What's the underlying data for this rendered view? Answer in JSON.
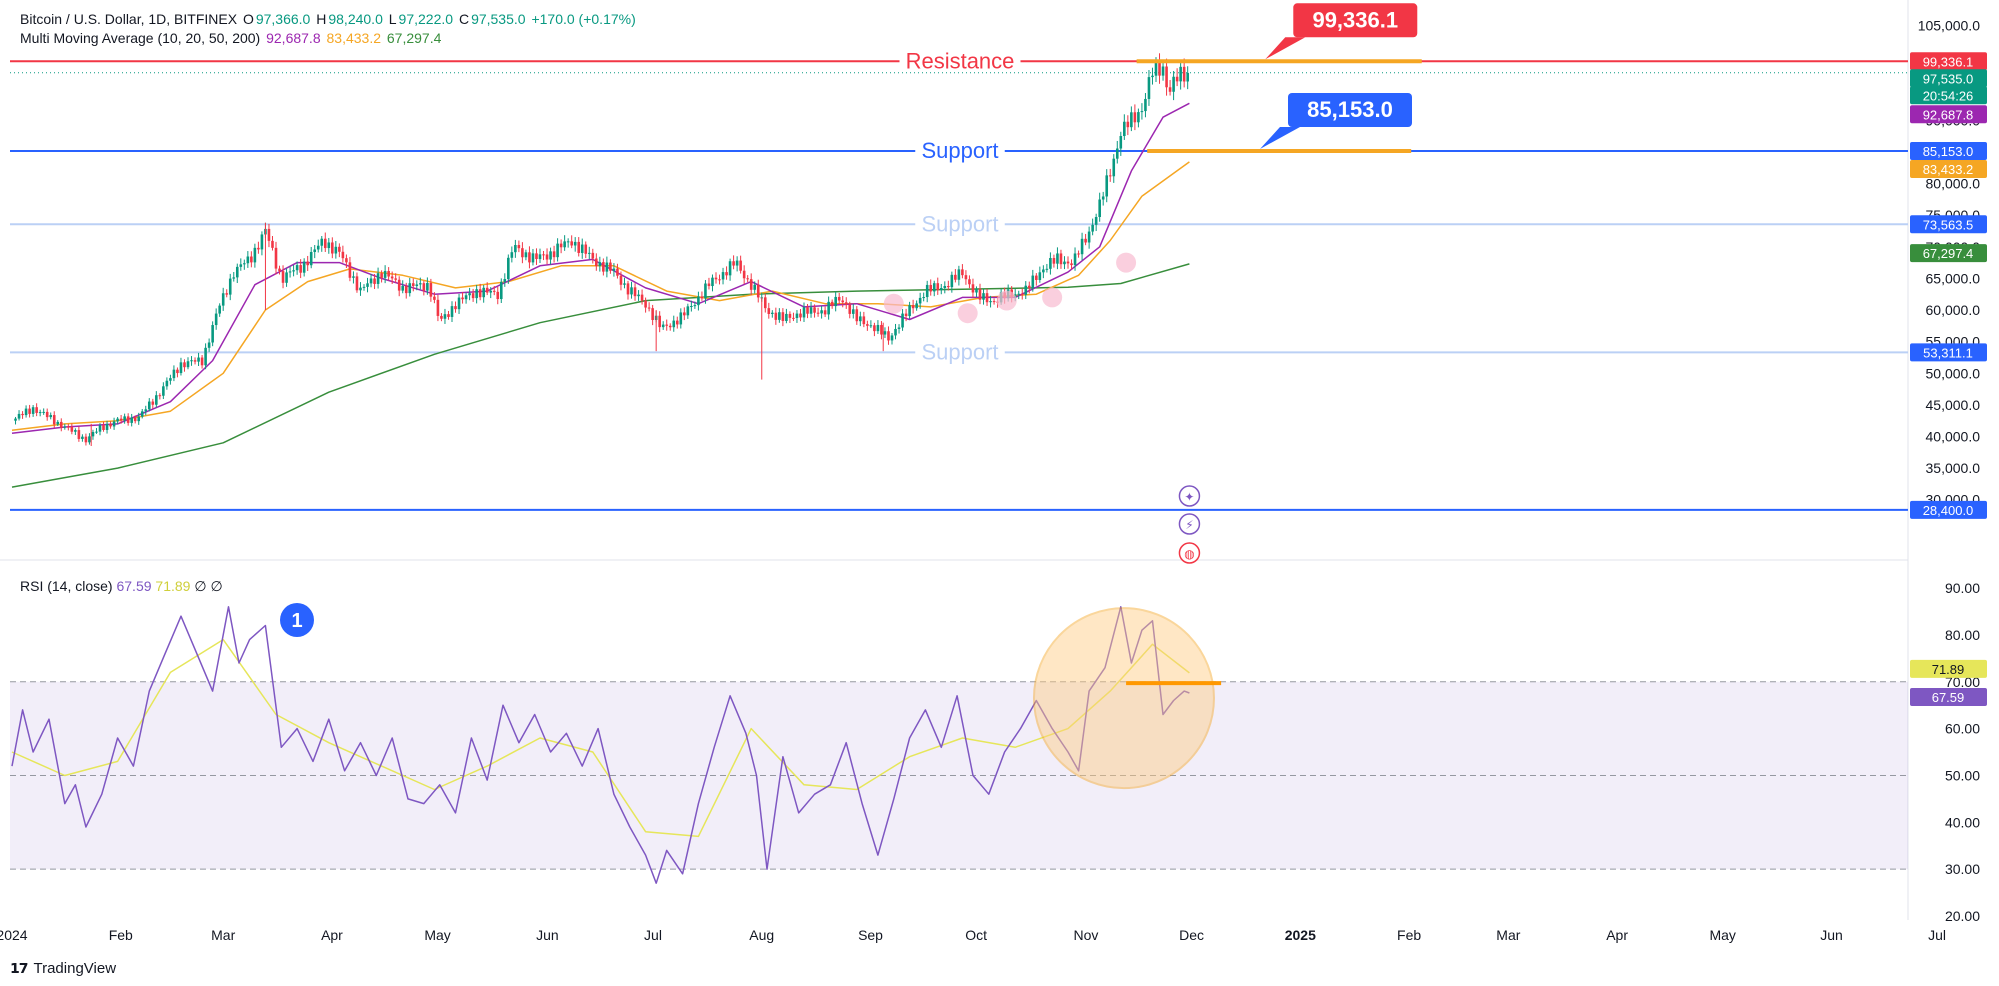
{
  "header": {
    "symbol": "Bitcoin / U.S. Dollar, 1D, BITFINEX",
    "open_label": "O",
    "open": "97,366.0",
    "high_label": "H",
    "high": "98,240.0",
    "low_label": "L",
    "low": "97,222.0",
    "close_label": "C",
    "close": "97,535.0",
    "change": "+170.0 (+0.17%)",
    "ma_title": "Multi Moving Average (10, 20, 50, 200)",
    "ma_vals": [
      "92,687.8",
      "83,433.2",
      "67,297.4"
    ]
  },
  "rsi_legend": {
    "title": "RSI (14, close)",
    "v1": "67.59",
    "v2": "71.89",
    "n1": "∅",
    "n2": "∅"
  },
  "brand": "TradingView",
  "colors": {
    "up": "#089981",
    "down": "#f23645",
    "ma10": "#9c27b0",
    "ma20": "#f5a623",
    "ma200": "#388e3c",
    "resistance": "#f23645",
    "support": "#2962ff",
    "support_faint": "#bbd0f5",
    "orange": "#f5a623",
    "rsi": "#7e57c2",
    "rsi_ma": "#e6e65a",
    "marker": "#ff9800",
    "badge_blue": "#2962ff"
  },
  "chart_data": {
    "type": "candlestick",
    "title": "Bitcoin / U.S. Dollar, 1D, BITFINEX",
    "ylim": [
      23000,
      106500
    ],
    "y_ticks": [
      "105,000.0",
      "95,000.0",
      "90,000.0",
      "80,000.0",
      "75,000.0",
      "70,000.0",
      "65,000.0",
      "60,000.0",
      "55,000.0",
      "50,000.0",
      "45,000.0",
      "40,000.0",
      "35,000.0",
      "30,000.0"
    ],
    "y_tick_values": [
      105000,
      95000,
      90000,
      80000,
      75000,
      70000,
      65000,
      60000,
      55000,
      50000,
      45000,
      40000,
      35000,
      30000
    ],
    "x_ticks": [
      {
        "label": "2024",
        "t": 0
      },
      {
        "label": "Feb",
        "t": 1.03
      },
      {
        "label": "Mar",
        "t": 2.0
      },
      {
        "label": "Apr",
        "t": 3.03
      },
      {
        "label": "May",
        "t": 4.03
      },
      {
        "label": "Jun",
        "t": 5.07
      },
      {
        "label": "Jul",
        "t": 6.07
      },
      {
        "label": "Aug",
        "t": 7.1
      },
      {
        "label": "Sep",
        "t": 8.13
      },
      {
        "label": "Oct",
        "t": 9.13
      },
      {
        "label": "Nov",
        "t": 10.17
      },
      {
        "label": "Dec",
        "t": 11.17
      },
      {
        "label": "2025",
        "t": 12.2
      },
      {
        "label": "Feb",
        "t": 13.23
      },
      {
        "label": "Mar",
        "t": 14.17
      },
      {
        "label": "Apr",
        "t": 15.2
      },
      {
        "label": "May",
        "t": 16.2
      },
      {
        "label": "Jun",
        "t": 17.23
      },
      {
        "label": "Jul",
        "t": 18.23
      }
    ],
    "price_path": [
      [
        0,
        42500
      ],
      [
        0.2,
        44500
      ],
      [
        0.35,
        43000
      ],
      [
        0.5,
        41500
      ],
      [
        0.7,
        39500
      ],
      [
        0.85,
        41500
      ],
      [
        1.0,
        42500
      ],
      [
        1.2,
        43000
      ],
      [
        1.4,
        47000
      ],
      [
        1.6,
        51500
      ],
      [
        1.8,
        52000
      ],
      [
        1.95,
        60000
      ],
      [
        2.1,
        66000
      ],
      [
        2.25,
        68000
      ],
      [
        2.4,
        72500
      ],
      [
        2.55,
        65000
      ],
      [
        2.75,
        67000
      ],
      [
        2.95,
        71000
      ],
      [
        3.1,
        69000
      ],
      [
        3.3,
        63000
      ],
      [
        3.5,
        66000
      ],
      [
        3.7,
        63500
      ],
      [
        3.95,
        64000
      ],
      [
        4.05,
        58000
      ],
      [
        4.2,
        61000
      ],
      [
        4.4,
        63000
      ],
      [
        4.6,
        62500
      ],
      [
        4.75,
        70000
      ],
      [
        4.95,
        68000
      ],
      [
        5.1,
        69000
      ],
      [
        5.3,
        71000
      ],
      [
        5.5,
        68000
      ],
      [
        5.7,
        66000
      ],
      [
        5.85,
        63000
      ],
      [
        6.0,
        61000
      ],
      [
        6.15,
        57000
      ],
      [
        6.35,
        59000
      ],
      [
        6.6,
        64000
      ],
      [
        6.85,
        67500
      ],
      [
        7.0,
        64000
      ],
      [
        7.15,
        60000
      ],
      [
        7.3,
        58500
      ],
      [
        7.45,
        59500
      ],
      [
        7.7,
        60000
      ],
      [
        7.85,
        62000
      ],
      [
        8.0,
        58500
      ],
      [
        8.15,
        57500
      ],
      [
        8.3,
        55500
      ],
      [
        8.45,
        59000
      ],
      [
        8.65,
        63000
      ],
      [
        8.85,
        64000
      ],
      [
        9.0,
        66000
      ],
      [
        9.15,
        62000
      ],
      [
        9.3,
        61500
      ],
      [
        9.45,
        62500
      ],
      [
        9.6,
        63000
      ],
      [
        9.75,
        66500
      ],
      [
        9.9,
        68000
      ],
      [
        10.05,
        67500
      ],
      [
        10.2,
        72500
      ],
      [
        10.3,
        76500
      ],
      [
        10.4,
        82000
      ],
      [
        10.5,
        88000
      ],
      [
        10.6,
        90000
      ],
      [
        10.7,
        92000
      ],
      [
        10.8,
        97500
      ],
      [
        10.9,
        98500
      ],
      [
        10.95,
        94500
      ],
      [
        11.05,
        97000
      ],
      [
        11.15,
        97535
      ]
    ],
    "wicks": [
      [
        7.1,
        49000,
        62000
      ],
      [
        6.1,
        53500,
        60000
      ],
      [
        8.25,
        53500,
        58000
      ],
      [
        2.4,
        60000,
        73800
      ],
      [
        0.75,
        38500,
        42000
      ]
    ],
    "ma10": [
      [
        0,
        40500
      ],
      [
        0.5,
        41500
      ],
      [
        1.0,
        42000
      ],
      [
        1.5,
        45500
      ],
      [
        1.9,
        52000
      ],
      [
        2.3,
        64000
      ],
      [
        2.7,
        67500
      ],
      [
        3.1,
        67500
      ],
      [
        3.5,
        65000
      ],
      [
        4.0,
        62500
      ],
      [
        4.5,
        63000
      ],
      [
        5.0,
        67000
      ],
      [
        5.5,
        68000
      ],
      [
        6.0,
        63500
      ],
      [
        6.5,
        61000
      ],
      [
        7.0,
        64500
      ],
      [
        7.5,
        60500
      ],
      [
        8.0,
        61000
      ],
      [
        8.5,
        58500
      ],
      [
        9.0,
        62000
      ],
      [
        9.5,
        62000
      ],
      [
        10.0,
        66000
      ],
      [
        10.3,
        70000
      ],
      [
        10.6,
        82000
      ],
      [
        10.9,
        90500
      ],
      [
        11.15,
        92688
      ]
    ],
    "ma20": [
      [
        0,
        41000
      ],
      [
        0.5,
        42000
      ],
      [
        1.0,
        42500
      ],
      [
        1.5,
        44000
      ],
      [
        2.0,
        50000
      ],
      [
        2.4,
        60000
      ],
      [
        2.8,
        64500
      ],
      [
        3.2,
        66500
      ],
      [
        3.7,
        65500
      ],
      [
        4.2,
        63500
      ],
      [
        4.7,
        64500
      ],
      [
        5.2,
        67000
      ],
      [
        5.7,
        67000
      ],
      [
        6.2,
        63000
      ],
      [
        6.7,
        61500
      ],
      [
        7.2,
        63000
      ],
      [
        7.7,
        61000
      ],
      [
        8.2,
        61000
      ],
      [
        8.7,
        60500
      ],
      [
        9.2,
        62000
      ],
      [
        9.7,
        62500
      ],
      [
        10.1,
        65500
      ],
      [
        10.4,
        71000
      ],
      [
        10.7,
        78000
      ],
      [
        11.15,
        83433
      ]
    ],
    "ma200": [
      [
        0,
        32000
      ],
      [
        1.0,
        35000
      ],
      [
        2.0,
        39000
      ],
      [
        3.0,
        47000
      ],
      [
        4.0,
        53000
      ],
      [
        5.0,
        58000
      ],
      [
        6.0,
        61500
      ],
      [
        7.0,
        62500
      ],
      [
        8.0,
        63000
      ],
      [
        9.0,
        63300
      ],
      [
        10.0,
        63600
      ],
      [
        10.5,
        64200
      ],
      [
        11.15,
        67297
      ]
    ],
    "levels": [
      {
        "name": "Resistance",
        "value": 99336.1,
        "label": "99,336.1",
        "style": "resistance"
      },
      {
        "name": "Support",
        "value": 85153.0,
        "label": "85,153.0",
        "style": "support"
      },
      {
        "name": "Support",
        "value": 73563.5,
        "label": "73,563.5",
        "style": "support_faint"
      },
      {
        "name": "Support",
        "value": 53311.1,
        "label": "53,311.1",
        "style": "support_faint"
      },
      {
        "name": "",
        "value": 28400,
        "label": "28,400.0",
        "style": "support"
      }
    ],
    "price_badges": [
      {
        "label": "99,336.1",
        "value": 99336.1,
        "color": "#f23645"
      },
      {
        "label": "97,535.0",
        "value": 97535,
        "color": "#089981"
      },
      {
        "label": "20:54:26",
        "value": 95950,
        "color": "#089981"
      },
      {
        "label": "92,687.8",
        "value": 92688,
        "color": "#9c27b0"
      },
      {
        "label": "85,153.0",
        "value": 85153,
        "color": "#2962ff"
      },
      {
        "label": "83,433.2",
        "value": 83433,
        "color": "#f5a623"
      },
      {
        "label": "73,563.5",
        "value": 73563.5,
        "color": "#2962ff"
      },
      {
        "label": "67,297.4",
        "value": 67297,
        "color": "#388e3c"
      },
      {
        "label": "53,311.1",
        "value": 53311,
        "color": "#2962ff"
      },
      {
        "label": "28,400.0",
        "value": 28400,
        "color": "#2962ff"
      }
    ],
    "callouts": [
      {
        "label": "99,336.1",
        "value": 99336.1,
        "t": 11.3,
        "color": "#f23645"
      },
      {
        "label": "85,153.0",
        "value": 85153,
        "t": 11.25,
        "color": "#2962ff"
      }
    ],
    "orange_segments": [
      {
        "value": 99336.1,
        "t_start": 10.65,
        "t_end": 13.35
      },
      {
        "value": 85153,
        "t_start": 10.75,
        "t_end": 13.25
      }
    ],
    "rsi": {
      "ylim": [
        20,
        93
      ],
      "ticks": [
        "90.00",
        "80.00",
        "70.00",
        "60.00",
        "50.00",
        "40.00",
        "30.00",
        "20.00"
      ],
      "tick_values": [
        90,
        80,
        70,
        60,
        50,
        40,
        30,
        20
      ],
      "band": [
        30,
        70
      ],
      "mid": 50,
      "current": [
        {
          "label": "71.89",
          "value": 71.89,
          "color": "#e6e65a"
        },
        {
          "label": "67.59",
          "value": 67.59,
          "color": "#7e57c2"
        }
      ],
      "series": [
        [
          0,
          52
        ],
        [
          0.1,
          64
        ],
        [
          0.2,
          55
        ],
        [
          0.35,
          62
        ],
        [
          0.5,
          44
        ],
        [
          0.6,
          48
        ],
        [
          0.7,
          39
        ],
        [
          0.85,
          46
        ],
        [
          1.0,
          58
        ],
        [
          1.15,
          52
        ],
        [
          1.3,
          68
        ],
        [
          1.45,
          76
        ],
        [
          1.6,
          84
        ],
        [
          1.75,
          76
        ],
        [
          1.9,
          68
        ],
        [
          2.05,
          86
        ],
        [
          2.15,
          74
        ],
        [
          2.25,
          79
        ],
        [
          2.4,
          82
        ],
        [
          2.55,
          56
        ],
        [
          2.7,
          60
        ],
        [
          2.85,
          53
        ],
        [
          3.0,
          62
        ],
        [
          3.15,
          51
        ],
        [
          3.3,
          57
        ],
        [
          3.45,
          50
        ],
        [
          3.6,
          58
        ],
        [
          3.75,
          45
        ],
        [
          3.9,
          44
        ],
        [
          4.05,
          48
        ],
        [
          4.2,
          42
        ],
        [
          4.35,
          58
        ],
        [
          4.5,
          49
        ],
        [
          4.65,
          65
        ],
        [
          4.8,
          57
        ],
        [
          4.95,
          63
        ],
        [
          5.1,
          55
        ],
        [
          5.25,
          59
        ],
        [
          5.4,
          52
        ],
        [
          5.55,
          60
        ],
        [
          5.7,
          46
        ],
        [
          5.85,
          39
        ],
        [
          6.0,
          33
        ],
        [
          6.1,
          27
        ],
        [
          6.2,
          34
        ],
        [
          6.35,
          29
        ],
        [
          6.5,
          44
        ],
        [
          6.65,
          56
        ],
        [
          6.8,
          67
        ],
        [
          6.95,
          59
        ],
        [
          7.05,
          50
        ],
        [
          7.15,
          30
        ],
        [
          7.3,
          54
        ],
        [
          7.45,
          42
        ],
        [
          7.6,
          46
        ],
        [
          7.75,
          48
        ],
        [
          7.9,
          57
        ],
        [
          8.05,
          44
        ],
        [
          8.2,
          33
        ],
        [
          8.35,
          45
        ],
        [
          8.5,
          58
        ],
        [
          8.65,
          64
        ],
        [
          8.8,
          56
        ],
        [
          8.95,
          67
        ],
        [
          9.1,
          50
        ],
        [
          9.25,
          46
        ],
        [
          9.4,
          55
        ],
        [
          9.55,
          60
        ],
        [
          9.7,
          66
        ],
        [
          9.85,
          60
        ],
        [
          10.0,
          55
        ],
        [
          10.1,
          51
        ],
        [
          10.2,
          68
        ],
        [
          10.35,
          73
        ],
        [
          10.5,
          86
        ],
        [
          10.6,
          74
        ],
        [
          10.7,
          81
        ],
        [
          10.8,
          83
        ],
        [
          10.9,
          63
        ],
        [
          11.0,
          66
        ],
        [
          11.1,
          68
        ],
        [
          11.15,
          67.59
        ]
      ],
      "ma": [
        [
          0,
          55
        ],
        [
          0.5,
          50
        ],
        [
          1.0,
          53
        ],
        [
          1.5,
          72
        ],
        [
          2.0,
          79
        ],
        [
          2.5,
          63
        ],
        [
          3.0,
          57
        ],
        [
          3.5,
          52
        ],
        [
          4.0,
          47
        ],
        [
          4.5,
          52
        ],
        [
          5.0,
          58
        ],
        [
          5.5,
          55
        ],
        [
          6.0,
          38
        ],
        [
          6.5,
          37
        ],
        [
          7.0,
          60
        ],
        [
          7.5,
          48
        ],
        [
          8.0,
          47
        ],
        [
          8.5,
          54
        ],
        [
          9.0,
          58
        ],
        [
          9.5,
          56
        ],
        [
          10.0,
          60
        ],
        [
          10.4,
          68
        ],
        [
          10.8,
          78
        ],
        [
          11.15,
          71.89
        ]
      ]
    }
  },
  "annotations": {
    "resistance": "Resistance",
    "support": "Support",
    "step_badge": "1"
  }
}
